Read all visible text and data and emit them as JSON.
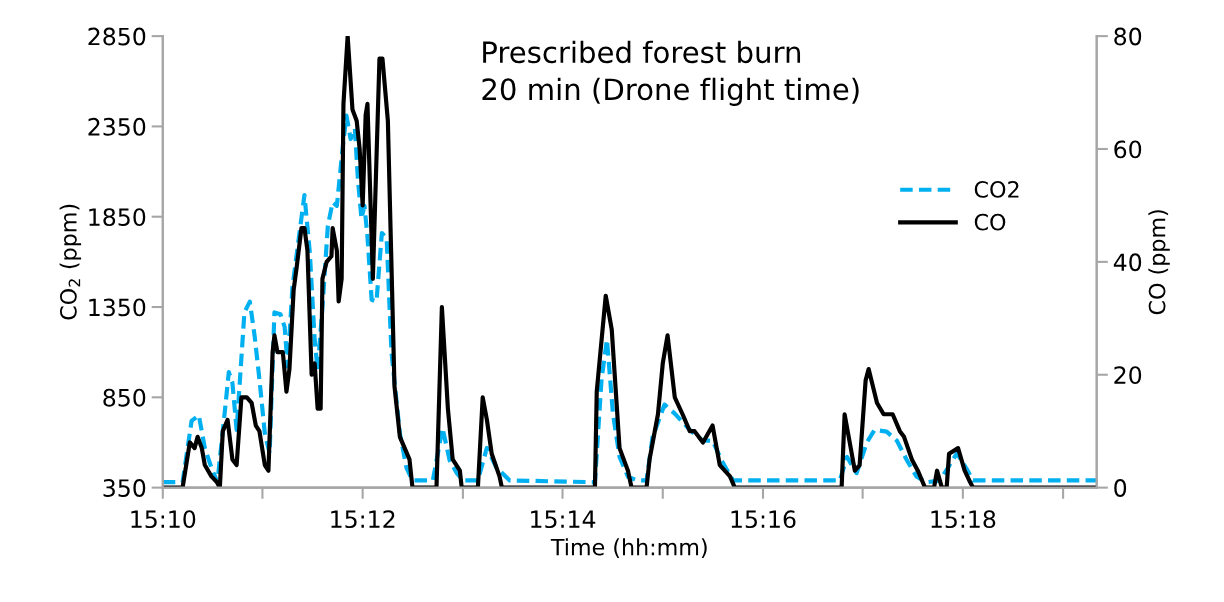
{
  "chart_data": {
    "type": "line",
    "title": "Prescribed forest burn\n20 min (Drone flight time)",
    "xlabel": "Time (hh:mm)",
    "ylabel": "CO$_{2}$ (ppm)",
    "y2label": "CO (ppm)",
    "xlim": [
      15.1667,
      15.3223
    ],
    "xticks": [
      {
        "value": 15.1667,
        "label": "15:10"
      },
      {
        "value": 15.1833,
        "label": null
      },
      {
        "value": 15.2,
        "label": "15:12"
      },
      {
        "value": 15.2167,
        "label": null
      },
      {
        "value": 15.2333,
        "label": "15:14"
      },
      {
        "value": 15.25,
        "label": null
      },
      {
        "value": 15.2667,
        "label": "15:16"
      },
      {
        "value": 15.2833,
        "label": null
      },
      {
        "value": 15.3,
        "label": "15:18"
      },
      {
        "value": 15.3167,
        "label": null
      }
    ],
    "ylim": [
      350,
      2850
    ],
    "yticks": [
      350,
      850,
      1350,
      1850,
      2350,
      2850
    ],
    "y2lim": [
      0,
      80
    ],
    "y2ticks": [
      0,
      20,
      40,
      60,
      80
    ],
    "grid": false,
    "legend": "right",
    "marker": "none",
    "series": [
      {
        "name": "CO2",
        "color": "#00b0f0",
        "line_style": "dashed",
        "x": [
          15.1667,
          15.17,
          15.1715,
          15.1727,
          15.1737,
          15.1748,
          15.1758,
          15.177,
          15.1777,
          15.1783,
          15.179,
          15.1803,
          15.1812,
          15.182,
          15.1828,
          15.1837,
          15.1845,
          15.1853,
          15.1863,
          15.187,
          15.1875,
          15.1883,
          15.1892,
          15.1903,
          15.1912,
          15.192,
          15.1925,
          15.1933,
          15.1942,
          15.195,
          15.1957,
          15.1967,
          15.1973,
          15.198,
          15.1987,
          15.1992,
          15.1998,
          15.2003,
          15.2008,
          15.2015,
          15.2023,
          15.2032,
          15.204,
          15.2048,
          15.2062,
          15.2073,
          15.2083,
          15.2117,
          15.2133,
          15.2145,
          15.2157,
          15.2167,
          15.2192,
          15.2207,
          15.2223,
          15.2245,
          15.2387,
          15.2398,
          15.2407,
          15.2417,
          15.2428,
          15.2442,
          15.2457,
          15.2473,
          15.2483,
          15.2503,
          15.252,
          15.2545,
          15.2567,
          15.2583,
          15.2598,
          15.2617,
          15.2795,
          15.2807,
          15.2823,
          15.284,
          15.2853,
          15.2873,
          15.289,
          15.2907,
          15.2923,
          15.294,
          15.2962,
          15.2975,
          15.299,
          15.3007,
          15.3017,
          15.3223
        ],
        "values": [
          380,
          380,
          720,
          750,
          570,
          460,
          380,
          760,
          990,
          930,
          670,
          1320,
          1380,
          1190,
          950,
          650,
          540,
          1320,
          1310,
          1240,
          1020,
          1460,
          1690,
          1970,
          1650,
          1170,
          1000,
          1350,
          1800,
          1930,
          1910,
          2240,
          2410,
          2280,
          2340,
          2060,
          1840,
          1910,
          1740,
          1390,
          1380,
          1760,
          1730,
          1100,
          650,
          460,
          390,
          390,
          680,
          500,
          430,
          390,
          390,
          570,
          460,
          390,
          380,
          950,
          1170,
          760,
          520,
          410,
          390,
          390,
          630,
          810,
          760,
          670,
          610,
          610,
          500,
          390,
          390,
          520,
          430,
          600,
          670,
          660,
          610,
          500,
          410,
          380,
          390,
          460,
          540,
          450,
          390,
          390
        ]
      },
      {
        "name": "CO",
        "color": "#000000",
        "line_style": "solid",
        "axis": "y2",
        "x": [
          15.1667,
          15.17,
          15.1712,
          15.172,
          15.1725,
          15.1732,
          15.1737,
          15.1748,
          15.1757,
          15.1762,
          15.1767,
          15.1775,
          15.1783,
          15.179,
          15.1798,
          15.1807,
          15.1815,
          15.1822,
          15.1828,
          15.1837,
          15.1843,
          15.185,
          15.1853,
          15.1858,
          15.1867,
          15.1873,
          15.1878,
          15.1885,
          15.189,
          15.1898,
          15.1903,
          15.1908,
          15.1915,
          15.192,
          15.1925,
          15.193,
          15.1933,
          15.194,
          15.1948,
          15.195,
          15.1957,
          15.196,
          15.1965,
          15.1968,
          15.1975,
          15.1983,
          15.199,
          15.1995,
          15.2,
          15.2005,
          15.2008,
          15.2017,
          15.2028,
          15.2033,
          15.2042,
          15.2053,
          15.2062,
          15.207,
          15.2078,
          15.2083,
          15.2123,
          15.2132,
          15.2142,
          15.215,
          15.2162,
          15.2165,
          15.2192,
          15.22,
          15.2207,
          15.2215,
          15.2228,
          15.2232,
          15.2387,
          15.239,
          15.2405,
          15.2415,
          15.2428,
          15.2442,
          15.2448,
          15.2473,
          15.2478,
          15.2492,
          15.25,
          15.2508,
          15.252,
          15.2533,
          15.2545,
          15.2553,
          15.2567,
          15.2583,
          15.2595,
          15.2612,
          15.262,
          15.2798,
          15.2803,
          15.282,
          15.2828,
          15.2838,
          15.2843,
          15.2857,
          15.2868,
          15.2883,
          15.2895,
          15.2902,
          15.2915,
          15.2925,
          15.2933,
          15.2937,
          15.2952,
          15.2957,
          15.2965,
          15.2973,
          15.2977,
          15.2992,
          15.3003,
          15.3012,
          15.3017,
          15.3223
        ],
        "values": [
          0,
          0,
          8,
          7,
          9,
          7,
          4,
          2,
          1,
          0,
          10,
          12,
          5,
          4,
          16,
          16,
          15,
          11,
          10,
          4,
          3,
          24,
          27,
          24,
          24,
          17,
          21,
          35,
          39,
          46,
          46,
          42,
          20,
          22,
          14,
          14,
          37,
          40,
          41,
          46,
          42,
          33,
          37,
          68,
          80,
          67,
          65,
          60,
          50,
          66,
          68,
          37,
          76,
          76,
          65,
          18,
          9,
          7,
          5,
          0,
          0,
          32,
          14,
          5,
          3,
          0,
          0,
          16,
          12,
          6,
          2,
          0,
          0,
          17,
          34,
          28,
          7,
          3,
          0,
          0,
          5,
          13,
          22,
          27,
          16,
          13,
          10,
          10,
          8,
          11,
          4,
          2,
          0,
          0,
          13,
          3,
          4,
          19,
          21,
          15,
          13,
          13,
          10,
          9,
          5,
          3,
          1,
          0,
          0,
          3,
          0,
          0,
          6,
          7,
          3,
          1,
          0,
          0
        ]
      }
    ]
  }
}
